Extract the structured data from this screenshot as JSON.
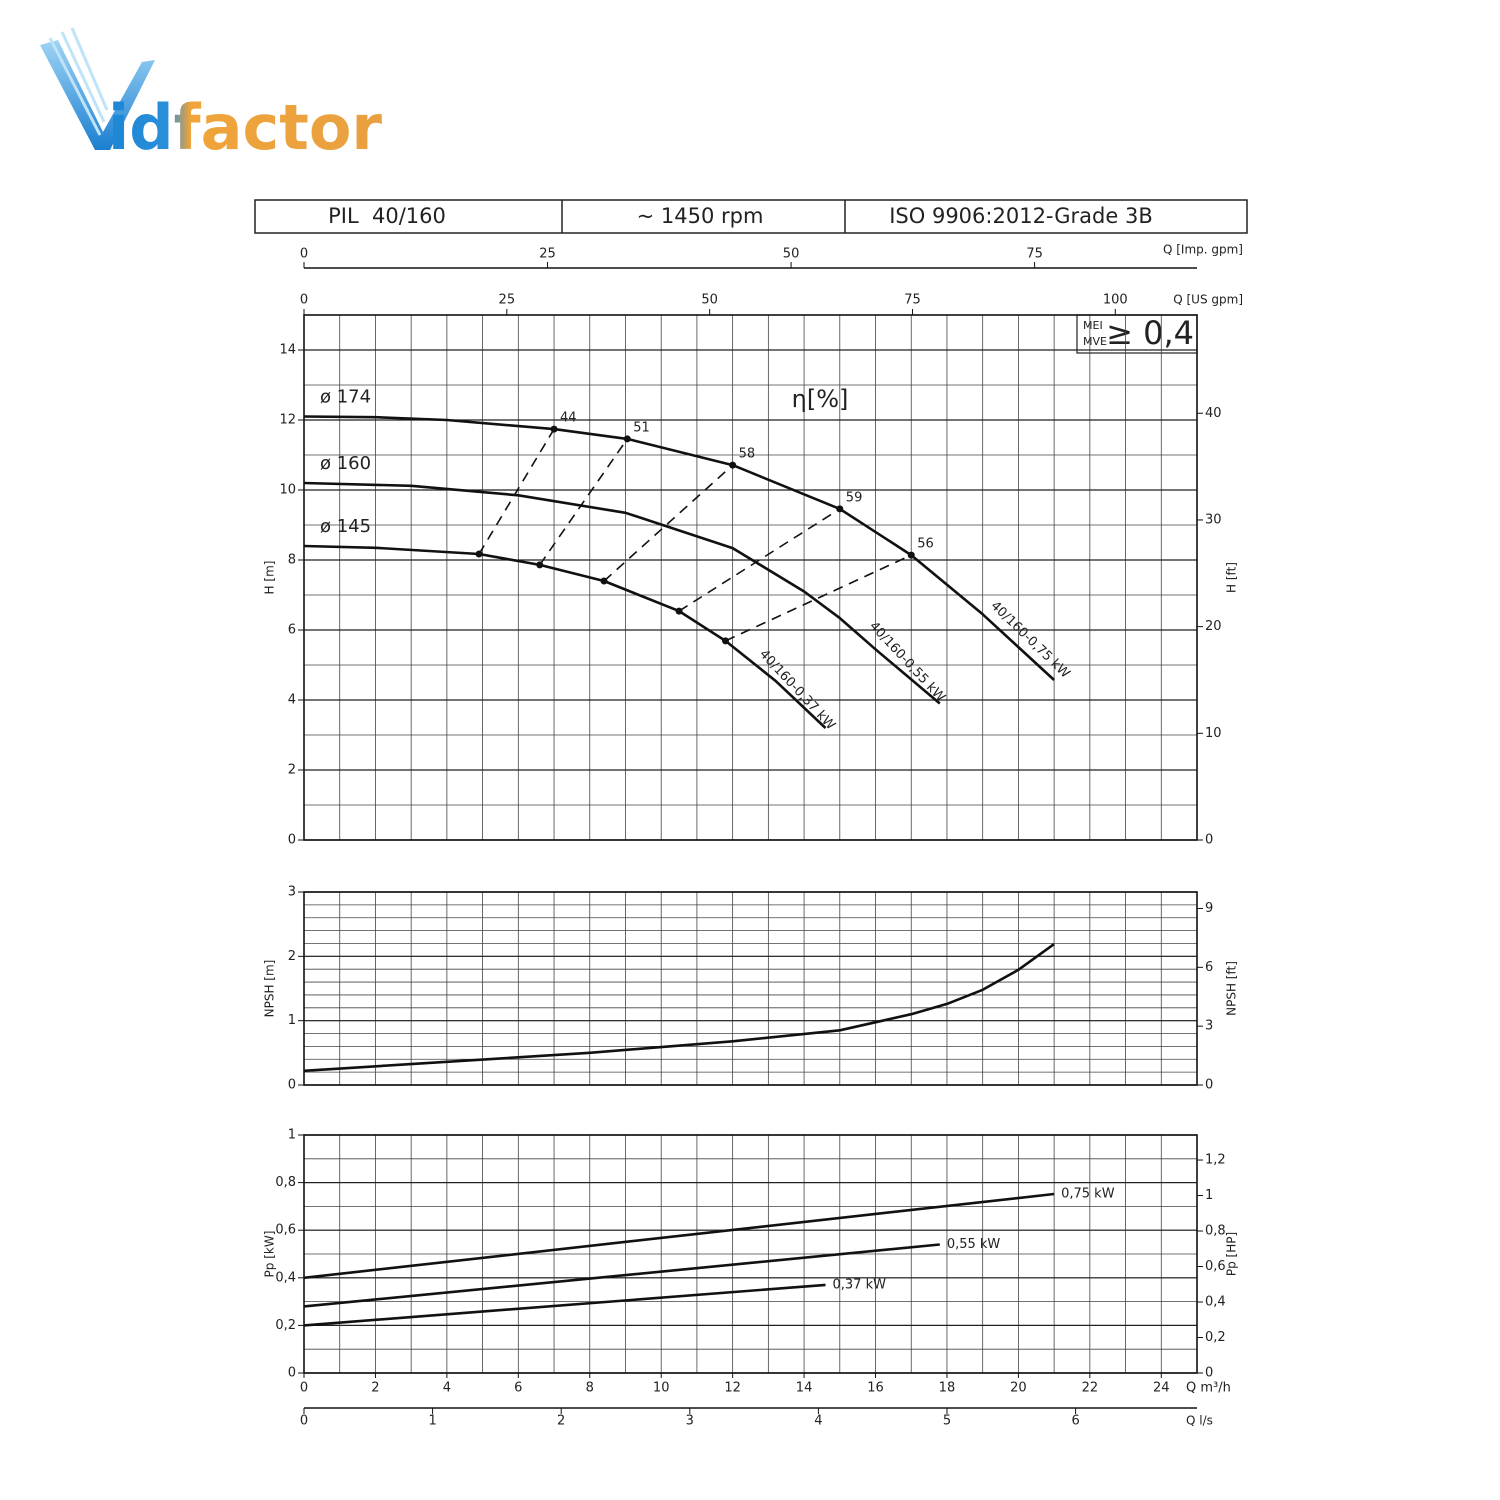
{
  "logo": "idfactor",
  "header": {
    "model": "PIL  40/160",
    "speed": "~ 1450 rpm",
    "standard": "ISO 9906:2012-Grade 3B"
  },
  "mei": {
    "labels": [
      "MEI",
      "MVE"
    ],
    "text": "≥ 0,4"
  },
  "chart_data": [
    {
      "type": "line",
      "ylabel": "H [m]",
      "y2label": "H [ft]",
      "annotation": "η[%]",
      "xlim": [
        0,
        25
      ],
      "ylim": [
        0,
        15
      ],
      "yticks": [
        0,
        2,
        4,
        6,
        8,
        10,
        12,
        14
      ],
      "y2lim": [
        0,
        49.21
      ],
      "y2ticks": [
        0,
        10,
        20,
        30,
        40
      ],
      "grid": true,
      "grid_step": [
        1,
        1
      ],
      "top_axes": [
        {
          "label": "Q [Imp. gpm]",
          "xlim": [
            0,
            91.67
          ],
          "xticks": [
            0,
            25,
            50,
            75
          ]
        },
        {
          "label": "Q [US gpm]",
          "xlim": [
            0,
            110.07
          ],
          "xticks": [
            0,
            25,
            50,
            75,
            100
          ]
        }
      ],
      "series": [
        {
          "name": "ø 174",
          "curve_label": "40/160-0,75 kW",
          "color": "#111111",
          "x": [
            0,
            2,
            4,
            7,
            9.05,
            12,
            15,
            17,
            19,
            21
          ],
          "values": [
            12.1,
            12.08,
            12.0,
            11.74,
            11.46,
            10.71,
            9.46,
            8.14,
            6.45,
            4.57
          ]
        },
        {
          "name": "ø 160",
          "curve_label": "40/160-0,55 kW",
          "color": "#111111",
          "x": [
            0,
            3,
            6,
            9,
            12,
            14,
            15,
            16,
            17.8
          ],
          "values": [
            10.2,
            10.12,
            9.85,
            9.35,
            8.34,
            7.1,
            6.34,
            5.45,
            3.9
          ]
        },
        {
          "name": "ø 145",
          "curve_label": "40/160-0,37 kW",
          "color": "#111111",
          "x": [
            0,
            2,
            4.9,
            6.6,
            8.4,
            10.5,
            11.8,
            13.2,
            14.6
          ],
          "values": [
            8.4,
            8.35,
            8.17,
            7.86,
            7.4,
            6.54,
            5.69,
            4.55,
            3.2
          ]
        }
      ],
      "efficiency_lines": [
        {
          "value": 44,
          "x": [
            4.9,
            7.0
          ],
          "y": [
            8.17,
            11.74
          ]
        },
        {
          "value": 51,
          "x": [
            6.6,
            9.05
          ],
          "y": [
            7.86,
            11.46
          ]
        },
        {
          "value": 58,
          "x": [
            8.4,
            12
          ],
          "y": [
            7.4,
            10.71
          ]
        },
        {
          "value": 59,
          "x": [
            10.5,
            15
          ],
          "y": [
            6.54,
            9.46
          ]
        },
        {
          "value": 56,
          "x": [
            11.8,
            17
          ],
          "y": [
            5.69,
            8.14
          ]
        }
      ]
    },
    {
      "type": "line",
      "ylabel": "NPSH [m]",
      "y2label": "NPSH [ft]",
      "xlim": [
        0,
        25
      ],
      "ylim": [
        0,
        3
      ],
      "yticks": [
        0,
        1,
        2,
        3
      ],
      "y2lim": [
        0,
        9.84
      ],
      "y2ticks": [
        0,
        3,
        6,
        9
      ],
      "grid": true,
      "grid_step": [
        1,
        0.2
      ],
      "series": [
        {
          "color": "#111111",
          "x": [
            0,
            4,
            8,
            12,
            15,
            17,
            18,
            19,
            20,
            21
          ],
          "values": [
            0.22,
            0.36,
            0.5,
            0.68,
            0.85,
            1.1,
            1.26,
            1.48,
            1.79,
            2.19
          ]
        }
      ]
    },
    {
      "type": "line",
      "ylabel": "Pp [kW]",
      "y2label": "Pp [HP]",
      "xlabel": "Q m³/h",
      "xlim": [
        0,
        25
      ],
      "xticks": [
        0,
        2,
        4,
        6,
        8,
        10,
        12,
        14,
        16,
        18,
        20,
        22,
        24
      ],
      "ylim": [
        0,
        1
      ],
      "yticks": [
        0,
        {
          "value": 0.2,
          "label": "0,2"
        },
        {
          "value": 0.4,
          "label": "0,4"
        },
        {
          "value": 0.6,
          "label": "0,6"
        },
        {
          "value": 0.8,
          "label": "0,8"
        },
        1
      ],
      "y2lim": [
        0,
        1.341
      ],
      "y2ticks": [
        0,
        {
          "value": 0.2,
          "label": "0,2"
        },
        {
          "value": 0.4,
          "label": "0,4"
        },
        {
          "value": 0.6,
          "label": "0,6"
        },
        {
          "value": 0.8,
          "label": "0,8"
        },
        1,
        {
          "value": 1.2,
          "label": "1,2"
        }
      ],
      "grid": true,
      "grid_step": [
        1,
        0.1
      ],
      "bottom_axes": [
        {
          "label": "Q l/s",
          "xlim": [
            0,
            6.944
          ],
          "xticks": [
            0,
            1,
            2,
            3,
            4,
            5,
            6
          ]
        }
      ],
      "series": [
        {
          "name": "0,75 kW",
          "color": "#111111",
          "x": [
            0,
            21
          ],
          "values": [
            0.4,
            0.752
          ]
        },
        {
          "name": "0,55 kW",
          "color": "#111111",
          "x": [
            0,
            17.8
          ],
          "values": [
            0.28,
            0.54
          ]
        },
        {
          "name": "0,37 kW",
          "color": "#111111",
          "x": [
            0,
            14.6
          ],
          "values": [
            0.2,
            0.37
          ]
        }
      ]
    }
  ]
}
